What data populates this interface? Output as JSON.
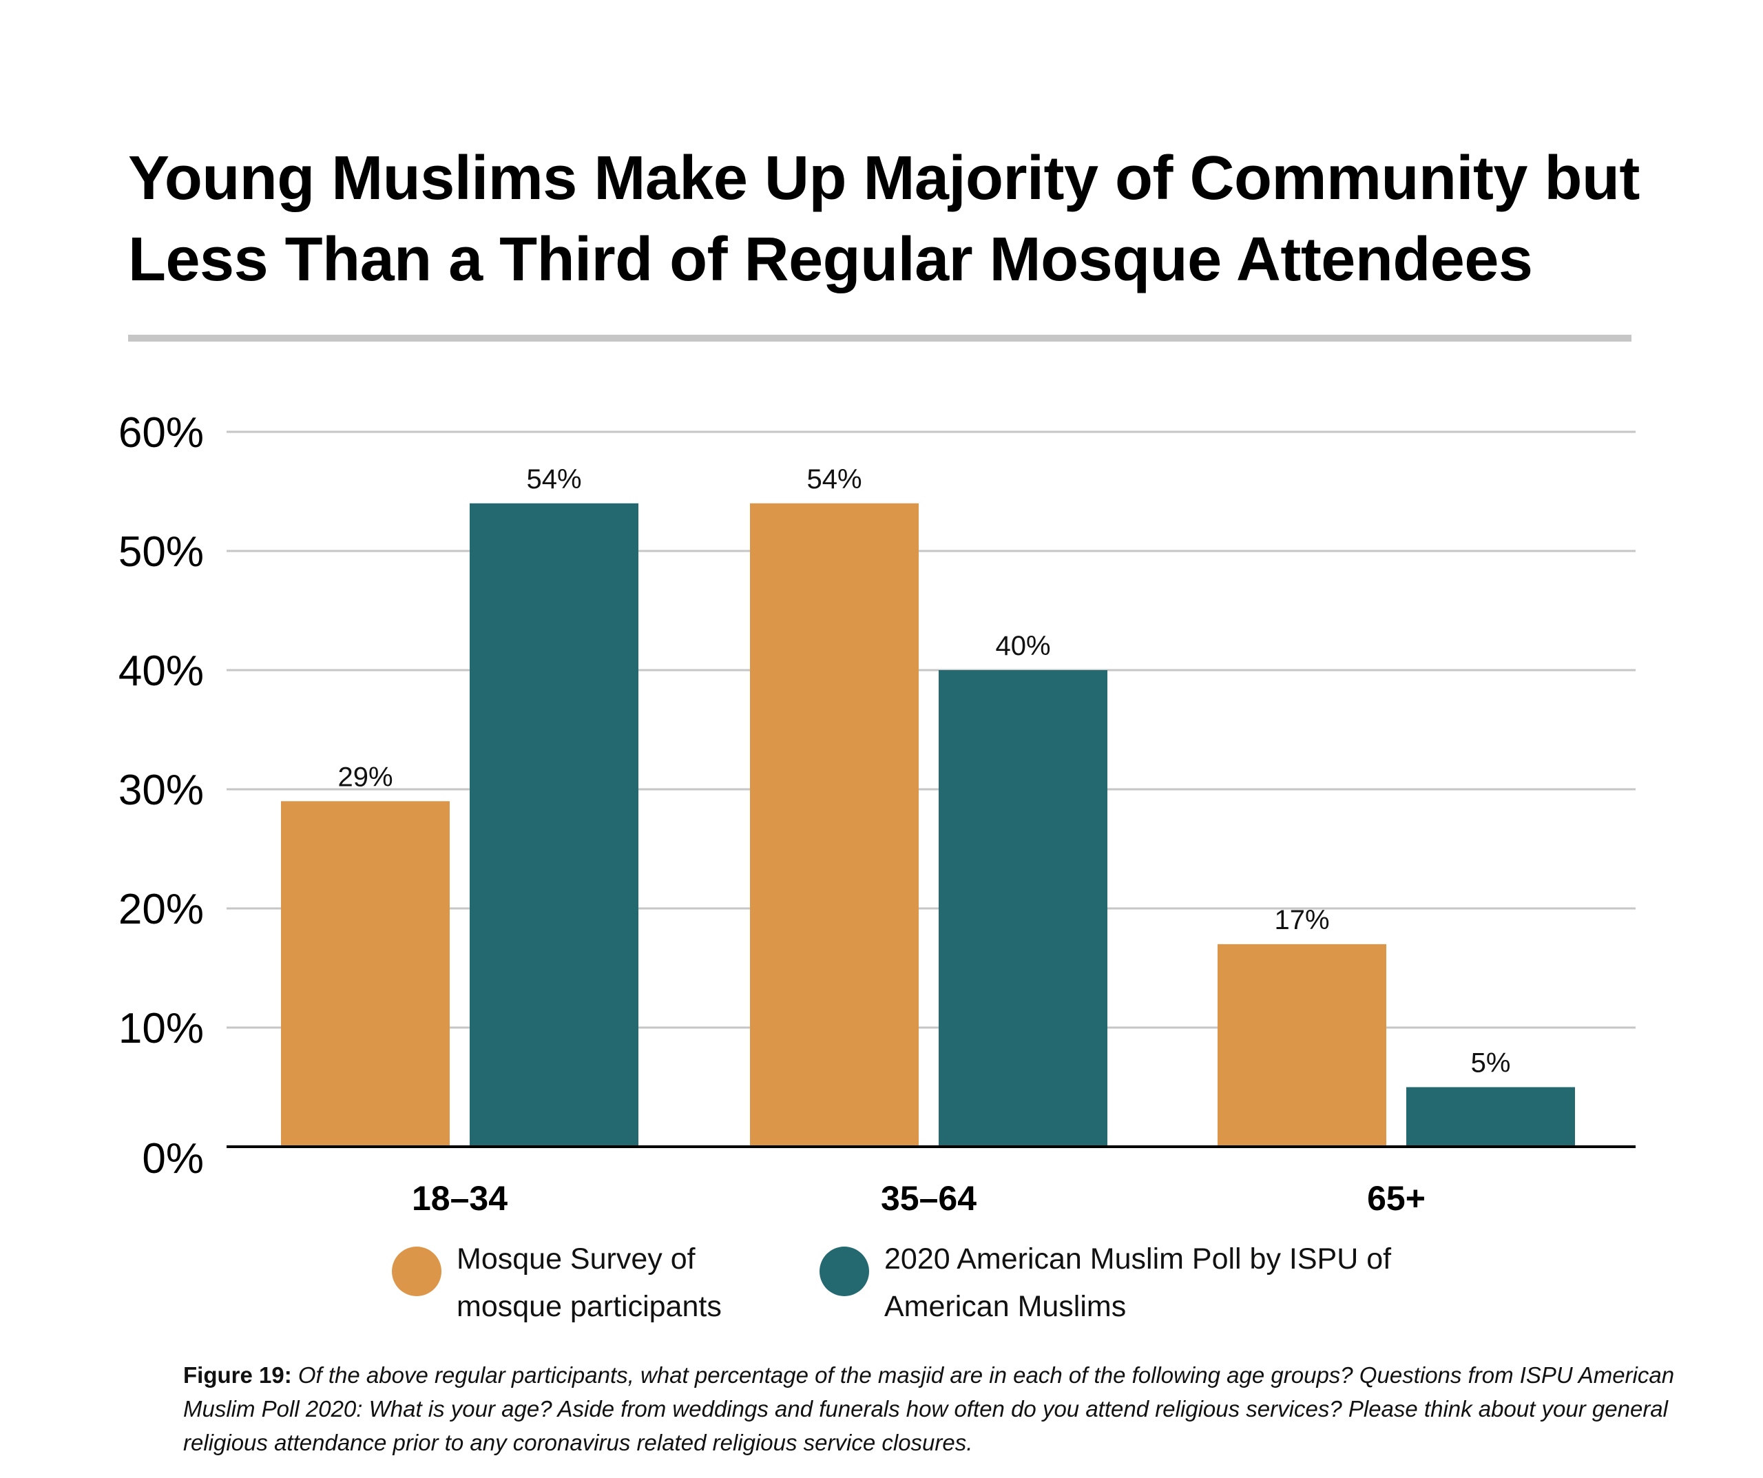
{
  "header": {
    "title_lines": [
      "Young Muslims Make Up Majority of Community but",
      "Less Than a Third of Regular Mosque Attendees"
    ]
  },
  "colors": {
    "mosque_survey": "#DC9649",
    "ispu_poll": "#246970",
    "gridline": "#c6c6c6",
    "baseline": "#000000",
    "rule": "#c6c6c6"
  },
  "chart_data": {
    "type": "bar",
    "title": "Young Muslims Make Up Majority of Community but Less Than a Third of Regular Mosque Attendees",
    "xlabel": "",
    "ylabel": "",
    "categories": [
      "18–34",
      "35–64",
      "65+"
    ],
    "series": [
      {
        "name": "Mosque Survey of mosque participants",
        "values": [
          29,
          54,
          17
        ],
        "labels": [
          "29%",
          "54%",
          "17%"
        ]
      },
      {
        "name": "2020 American Muslim Poll by ISPU of American Muslims",
        "values": [
          54,
          40,
          5
        ],
        "labels": [
          "54%",
          "40%",
          "5%"
        ]
      }
    ],
    "ylim": [
      0,
      60
    ],
    "yticks": [
      0,
      10,
      20,
      30,
      40,
      50,
      60
    ],
    "ytick_labels": [
      "0%",
      "10%",
      "20%",
      "30%",
      "40%",
      "50%",
      "60%"
    ],
    "grid": true,
    "legend_position": "bottom"
  },
  "legend": {
    "items": [
      {
        "lines": [
          "Mosque Survey of",
          "mosque participants"
        ]
      },
      {
        "lines": [
          "2020 American Muslim Poll by ISPU of",
          "American Muslims"
        ]
      }
    ]
  },
  "caption": {
    "figure_label": "Figure 19:",
    "text": " Of the above regular participants, what percentage of the masjid are in each of the following age groups? Questions from ISPU American Muslim Poll 2020: What is your age? Aside from weddings and funerals how often do you attend religious services? Please think about your general religious attendance prior to any coronavirus related religious service closures."
  }
}
